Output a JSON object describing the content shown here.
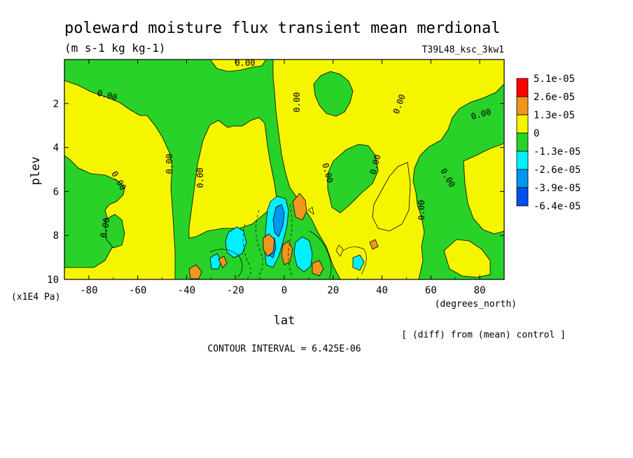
{
  "chart_data": {
    "type": "heatmap",
    "title": "poleward moisture flux transient mean merdional",
    "subtitle": "(m s-1 kg kg-1)",
    "run_label": "T39L48_ksc_3kw1",
    "xlabel": "lat",
    "x_units": "(degrees_north)",
    "ylabel": "plev",
    "y_units": "(x1E4 Pa)",
    "xlim": [
      -90,
      90
    ],
    "ylim": [
      10,
      0
    ],
    "x_ticks": [
      "-80",
      "-60",
      "-40",
      "-20",
      "0",
      "20",
      "40",
      "60",
      "80"
    ],
    "y_ticks": [
      "2",
      "4",
      "6",
      "8",
      "10"
    ],
    "note": "[ (diff) from (mean) control ]",
    "contour_interval": "CONTOUR INTERVAL = 6.425E-06",
    "contour_labels": [
      "0.00",
      "0.00",
      "0.00",
      "0.00",
      "0.00",
      "0.00",
      "0.00",
      "0.00",
      "0.00",
      "0.00",
      "0.00",
      "0.00",
      "0.00"
    ],
    "legend": {
      "labels": [
        "5.1e-05",
        "2.6e-05",
        "1.3e-05",
        "0",
        "-1.3e-05",
        "-2.6e-05",
        "-3.9e-05",
        "-6.4e-05"
      ],
      "colors": [
        "#ff0000",
        "#f0961e",
        "#f5f500",
        "#28d228",
        "#00f0ff",
        "#0096f0",
        "#0050f0"
      ]
    },
    "grid": false
  }
}
